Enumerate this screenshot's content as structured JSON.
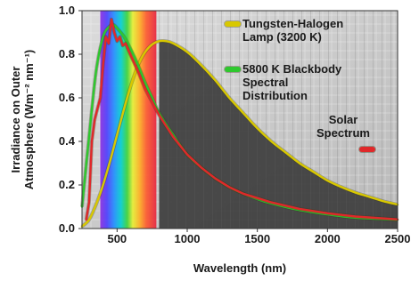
{
  "chart_data": {
    "type": "line",
    "xlabel": "Wavelength (nm)",
    "ylabel_lines": [
      "Irradiance on Outer",
      "Atmosphere (Wm⁻² nm⁻¹)"
    ],
    "xlim": [
      250,
      2500
    ],
    "ylim": [
      0,
      1.0
    ],
    "x_ticks": [
      500,
      1000,
      1500,
      2000,
      2500
    ],
    "y_ticks": [
      0.0,
      0.2,
      0.4,
      0.6,
      0.8,
      1.0
    ],
    "y_tick_labels": [
      "0.0",
      "0.2",
      "0.4",
      "0.6",
      "0.8",
      "1.0"
    ],
    "grid": true,
    "background_band": {
      "from": 800,
      "to": 2500,
      "color": "#3a3a3a"
    },
    "spectrum_band": {
      "from": 380,
      "to": 780
    },
    "series": [
      {
        "name_lines": [
          "Tungsten-Halogen",
          "Lamp (3200 K)"
        ],
        "color": "#d8c800",
        "x": [
          250,
          300,
          350,
          400,
          450,
          500,
          550,
          600,
          650,
          700,
          750,
          800,
          850,
          900,
          1000,
          1100,
          1200,
          1300,
          1400,
          1500,
          1600,
          1700,
          1800,
          1900,
          2000,
          2100,
          2200,
          2300,
          2400,
          2500
        ],
        "y": [
          0.01,
          0.04,
          0.11,
          0.2,
          0.31,
          0.43,
          0.55,
          0.66,
          0.75,
          0.81,
          0.845,
          0.86,
          0.86,
          0.85,
          0.81,
          0.75,
          0.68,
          0.6,
          0.53,
          0.46,
          0.4,
          0.35,
          0.3,
          0.26,
          0.22,
          0.19,
          0.165,
          0.145,
          0.125,
          0.11
        ]
      },
      {
        "name_lines": [
          "5800 K Blackbody",
          "Spectral",
          "Distribution"
        ],
        "color": "#2ec82e",
        "x": [
          250,
          300,
          350,
          400,
          450,
          475,
          500,
          550,
          600,
          650,
          700,
          750,
          800,
          900,
          1000,
          1100,
          1200,
          1300,
          1400,
          1500,
          1600,
          1800,
          2000,
          2200,
          2500
        ],
        "y": [
          0.1,
          0.42,
          0.72,
          0.88,
          0.93,
          0.935,
          0.92,
          0.88,
          0.82,
          0.75,
          0.67,
          0.6,
          0.53,
          0.43,
          0.34,
          0.28,
          0.23,
          0.19,
          0.16,
          0.135,
          0.115,
          0.085,
          0.065,
          0.05,
          0.04
        ]
      },
      {
        "name_lines": [
          "Solar",
          "Spectrum"
        ],
        "color": "#e0282a",
        "x": [
          280,
          300,
          320,
          340,
          360,
          380,
          400,
          420,
          440,
          460,
          470,
          480,
          500,
          520,
          540,
          560,
          580,
          600,
          650,
          700,
          750,
          800,
          900,
          1000,
          1100,
          1200,
          1300,
          1400,
          1500,
          1600,
          1800,
          2000,
          2200,
          2500
        ],
        "y": [
          0.04,
          0.12,
          0.4,
          0.5,
          0.55,
          0.6,
          0.75,
          0.88,
          0.85,
          0.96,
          0.93,
          0.9,
          0.86,
          0.88,
          0.84,
          0.85,
          0.82,
          0.79,
          0.72,
          0.64,
          0.58,
          0.52,
          0.42,
          0.34,
          0.28,
          0.23,
          0.19,
          0.16,
          0.14,
          0.12,
          0.09,
          0.07,
          0.055,
          0.042
        ]
      }
    ]
  }
}
